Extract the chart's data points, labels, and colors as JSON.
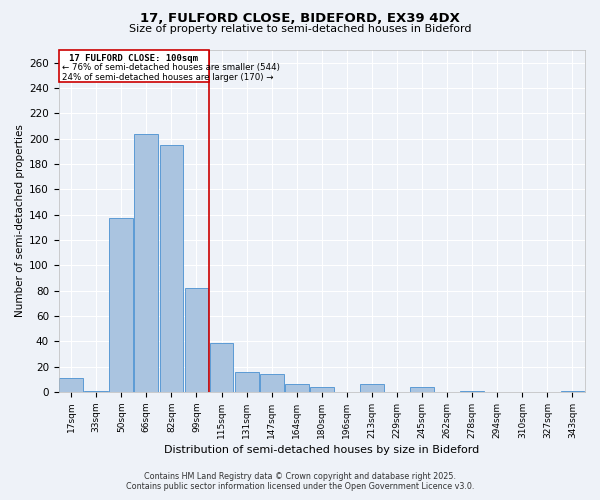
{
  "title": "17, FULFORD CLOSE, BIDEFORD, EX39 4DX",
  "subtitle": "Size of property relative to semi-detached houses in Bideford",
  "xlabel": "Distribution of semi-detached houses by size in Bideford",
  "ylabel": "Number of semi-detached properties",
  "bar_labels": [
    "17sqm",
    "33sqm",
    "50sqm",
    "66sqm",
    "82sqm",
    "99sqm",
    "115sqm",
    "131sqm",
    "147sqm",
    "164sqm",
    "180sqm",
    "196sqm",
    "213sqm",
    "229sqm",
    "245sqm",
    "262sqm",
    "278sqm",
    "294sqm",
    "310sqm",
    "327sqm",
    "343sqm"
  ],
  "bar_values": [
    11,
    1,
    137,
    204,
    195,
    82,
    39,
    16,
    14,
    6,
    4,
    0,
    6,
    0,
    4,
    0,
    1,
    0,
    0,
    0,
    1
  ],
  "bar_color": "#aac4e0",
  "bar_edge_color": "#5b9bd5",
  "vline_label": "17 FULFORD CLOSE: 100sqm",
  "annotation_smaller": "← 76% of semi-detached houses are smaller (544)",
  "annotation_larger": "24% of semi-detached houses are larger (170) →",
  "box_color": "#cc0000",
  "ylim": [
    0,
    270
  ],
  "yticks": [
    0,
    20,
    40,
    60,
    80,
    100,
    120,
    140,
    160,
    180,
    200,
    220,
    240,
    260
  ],
  "bg_color": "#eef2f8",
  "grid_color": "#ffffff",
  "footer_line1": "Contains HM Land Registry data © Crown copyright and database right 2025.",
  "footer_line2": "Contains public sector information licensed under the Open Government Licence v3.0."
}
